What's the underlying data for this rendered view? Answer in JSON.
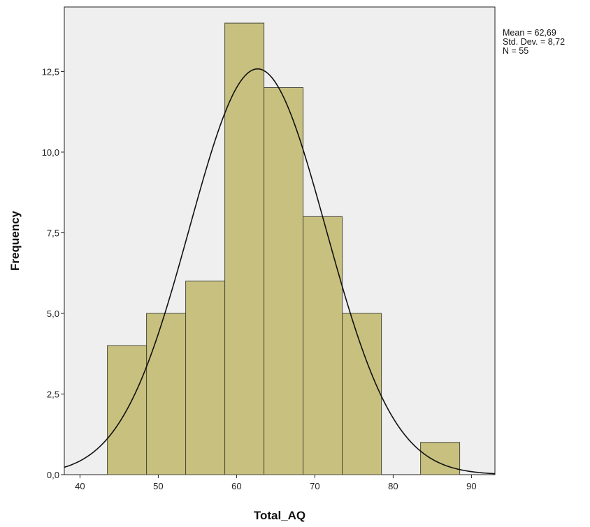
{
  "chart_data": {
    "type": "bar",
    "subtype": "histogram-with-normal-curve",
    "xlabel": "Total_AQ",
    "ylabel": "Frequency",
    "xlim": [
      38,
      93
    ],
    "ylim": [
      0,
      14.5
    ],
    "x_ticks": [
      40,
      50,
      60,
      70,
      80,
      90
    ],
    "x_tick_labels": [
      "40",
      "50",
      "60",
      "70",
      "80",
      "90"
    ],
    "y_ticks": [
      0,
      2.5,
      5,
      7.5,
      10,
      12.5
    ],
    "y_tick_labels": [
      "0,0",
      "2,5",
      "5,0",
      "7,5",
      "10,0",
      "12,5"
    ],
    "bins": [
      {
        "start": 43.5,
        "end": 48.5,
        "count": 4
      },
      {
        "start": 48.5,
        "end": 53.5,
        "count": 5
      },
      {
        "start": 53.5,
        "end": 58.5,
        "count": 6
      },
      {
        "start": 58.5,
        "end": 63.5,
        "count": 14
      },
      {
        "start": 63.5,
        "end": 68.5,
        "count": 12
      },
      {
        "start": 68.5,
        "end": 73.5,
        "count": 8
      },
      {
        "start": 73.5,
        "end": 78.5,
        "count": 5
      },
      {
        "start": 83.5,
        "end": 88.5,
        "count": 1
      }
    ],
    "normal_curve": {
      "mean": 62.69,
      "std": 8.72,
      "n": 55,
      "bin_width": 5
    },
    "grid": false,
    "colors": {
      "bar": "#c8c07e",
      "bar_border": "#4a4a3a",
      "plot_bg": "#efefef",
      "curve": "#111111"
    }
  },
  "stats": {
    "mean": "Mean = 62,69",
    "std": "Std. Dev. = 8,72",
    "n": "N = 55"
  }
}
